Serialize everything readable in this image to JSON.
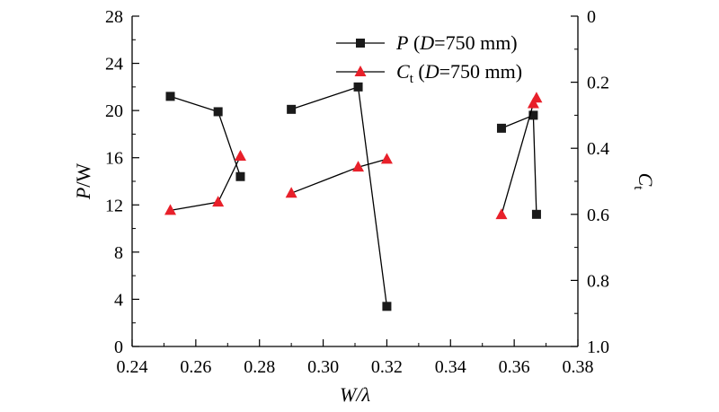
{
  "chart_data": {
    "type": "scatter",
    "x_axis": {
      "label_var": "W",
      "label_rest": "/λ",
      "lim": [
        0.24,
        0.38
      ],
      "ticks": [
        0.24,
        0.26,
        0.28,
        0.3,
        0.32,
        0.34,
        0.36,
        0.38
      ],
      "tick_labels": [
        "0.24",
        "0.26",
        "0.28",
        "0.30",
        "0.32",
        "0.34",
        "0.36",
        "0.38"
      ]
    },
    "y_left": {
      "label_var": "P",
      "label_rest": "/W",
      "lim": [
        0,
        28
      ],
      "ticks": [
        0,
        4,
        8,
        12,
        16,
        20,
        24,
        28
      ],
      "tick_labels": [
        "0",
        "4",
        "8",
        "12",
        "16",
        "20",
        "24",
        "28"
      ]
    },
    "y_right": {
      "label_var": "C",
      "label_sub": "t",
      "lim": [
        1.0,
        0
      ],
      "inverted": true,
      "ticks": [
        0,
        0.2,
        0.4,
        0.6,
        0.8,
        1.0
      ],
      "tick_labels": [
        "0",
        "0.2",
        "0.4",
        "0.6",
        "0.8",
        "1.0"
      ]
    },
    "series": [
      {
        "name": "P (D=750 mm)",
        "legend_var": "P",
        "legend_rest": " (",
        "legend_var2": "D",
        "legend_tail": "=750 mm)",
        "axis": "left",
        "marker": "square",
        "color": "#1a1a1a",
        "segments": [
          [
            [
              0.252,
              21.2
            ],
            [
              0.267,
              19.9
            ],
            [
              0.274,
              14.4
            ]
          ],
          [
            [
              0.29,
              20.1
            ],
            [
              0.311,
              22.0
            ],
            [
              0.32,
              3.4
            ]
          ],
          [
            [
              0.356,
              18.5
            ],
            [
              0.366,
              19.6
            ],
            [
              0.367,
              11.2
            ]
          ]
        ]
      },
      {
        "name": "Ct (D=750 mm)",
        "legend_var": "C",
        "legend_sub": "t",
        "legend_rest": " (",
        "legend_var2": "D",
        "legend_tail": "=750 mm)",
        "axis": "right",
        "marker": "triangle",
        "color": "#e8202a",
        "segments": [
          [
            [
              0.252,
              0.588
            ],
            [
              0.267,
              0.563
            ],
            [
              0.274,
              0.424
            ]
          ],
          [
            [
              0.29,
              0.536
            ],
            [
              0.311,
              0.457
            ],
            [
              0.32,
              0.433
            ]
          ],
          [
            [
              0.356,
              0.601
            ],
            [
              0.366,
              0.265
            ],
            [
              0.367,
              0.248
            ]
          ]
        ]
      }
    ],
    "grid": false,
    "legend_position": "top-right"
  }
}
